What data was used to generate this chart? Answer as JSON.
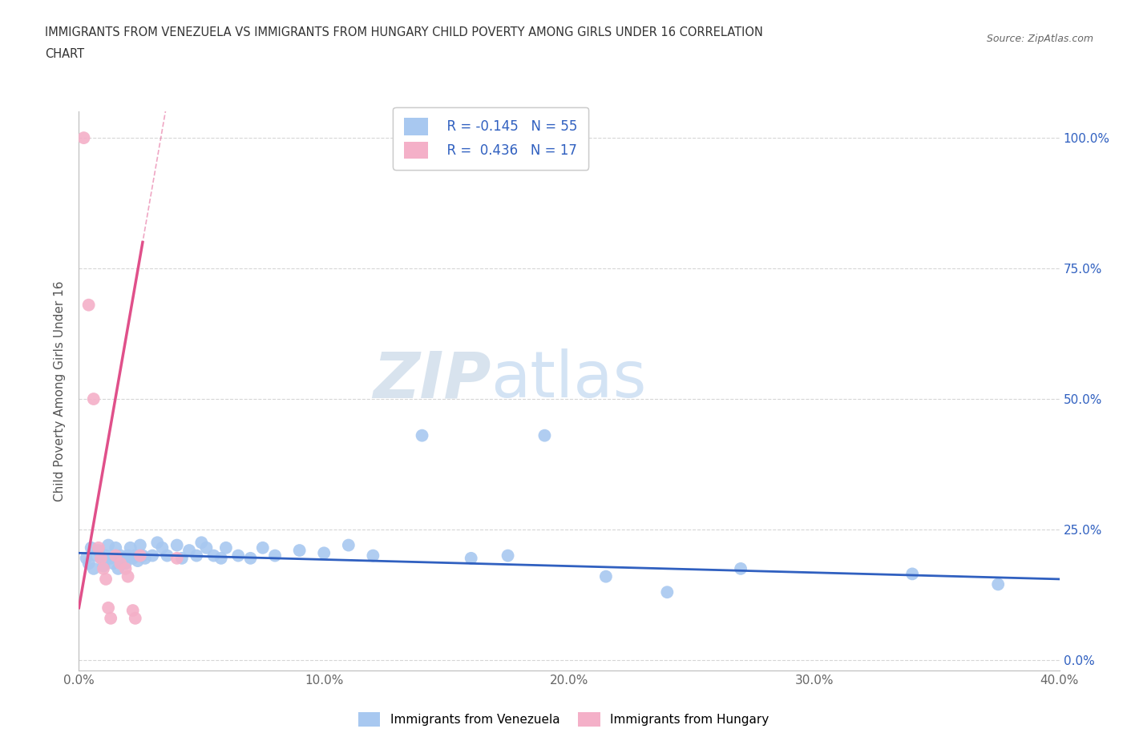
{
  "title_line1": "IMMIGRANTS FROM VENEZUELA VS IMMIGRANTS FROM HUNGARY CHILD POVERTY AMONG GIRLS UNDER 16 CORRELATION",
  "title_line2": "CHART",
  "source": "Source: ZipAtlas.com",
  "ylabel": "Child Poverty Among Girls Under 16",
  "xlim": [
    0.0,
    0.4
  ],
  "ylim": [
    -0.02,
    1.05
  ],
  "xticks": [
    0.0,
    0.1,
    0.2,
    0.3,
    0.4
  ],
  "yticks": [
    0.0,
    0.25,
    0.5,
    0.75,
    1.0
  ],
  "xticklabels": [
    "0.0%",
    "10.0%",
    "20.0%",
    "30.0%",
    "40.0%"
  ],
  "yticklabels_right": [
    "0.0%",
    "25.0%",
    "50.0%",
    "75.0%",
    "100.0%"
  ],
  "venezuela_color": "#a8c8f0",
  "hungary_color": "#f4b0c8",
  "venezuela_line_color": "#3060c0",
  "hungary_line_color": "#e0508a",
  "R_venezuela": -0.145,
  "N_venezuela": 55,
  "R_hungary": 0.436,
  "N_hungary": 17,
  "legend_label_venezuela": "Immigrants from Venezuela",
  "legend_label_hungary": "Immigrants from Hungary",
  "background_color": "#ffffff",
  "venezuela_scatter": [
    [
      0.003,
      0.195
    ],
    [
      0.004,
      0.185
    ],
    [
      0.005,
      0.215
    ],
    [
      0.006,
      0.175
    ],
    [
      0.007,
      0.2
    ],
    [
      0.008,
      0.21
    ],
    [
      0.009,
      0.195
    ],
    [
      0.01,
      0.18
    ],
    [
      0.011,
      0.2
    ],
    [
      0.012,
      0.22
    ],
    [
      0.013,
      0.195
    ],
    [
      0.014,
      0.185
    ],
    [
      0.015,
      0.215
    ],
    [
      0.016,
      0.175
    ],
    [
      0.017,
      0.2
    ],
    [
      0.018,
      0.195
    ],
    [
      0.019,
      0.185
    ],
    [
      0.02,
      0.2
    ],
    [
      0.021,
      0.215
    ],
    [
      0.022,
      0.195
    ],
    [
      0.023,
      0.2
    ],
    [
      0.024,
      0.19
    ],
    [
      0.025,
      0.22
    ],
    [
      0.026,
      0.2
    ],
    [
      0.027,
      0.195
    ],
    [
      0.03,
      0.2
    ],
    [
      0.032,
      0.225
    ],
    [
      0.034,
      0.215
    ],
    [
      0.036,
      0.2
    ],
    [
      0.04,
      0.22
    ],
    [
      0.042,
      0.195
    ],
    [
      0.045,
      0.21
    ],
    [
      0.048,
      0.2
    ],
    [
      0.05,
      0.225
    ],
    [
      0.052,
      0.215
    ],
    [
      0.055,
      0.2
    ],
    [
      0.058,
      0.195
    ],
    [
      0.06,
      0.215
    ],
    [
      0.065,
      0.2
    ],
    [
      0.07,
      0.195
    ],
    [
      0.075,
      0.215
    ],
    [
      0.08,
      0.2
    ],
    [
      0.09,
      0.21
    ],
    [
      0.1,
      0.205
    ],
    [
      0.11,
      0.22
    ],
    [
      0.12,
      0.2
    ],
    [
      0.14,
      0.43
    ],
    [
      0.16,
      0.195
    ],
    [
      0.175,
      0.2
    ],
    [
      0.19,
      0.43
    ],
    [
      0.215,
      0.16
    ],
    [
      0.24,
      0.13
    ],
    [
      0.27,
      0.175
    ],
    [
      0.34,
      0.165
    ],
    [
      0.375,
      0.145
    ]
  ],
  "hungary_scatter": [
    [
      0.002,
      1.0
    ],
    [
      0.004,
      0.68
    ],
    [
      0.006,
      0.5
    ],
    [
      0.008,
      0.215
    ],
    [
      0.009,
      0.195
    ],
    [
      0.01,
      0.175
    ],
    [
      0.011,
      0.155
    ],
    [
      0.012,
      0.1
    ],
    [
      0.013,
      0.08
    ],
    [
      0.015,
      0.2
    ],
    [
      0.017,
      0.185
    ],
    [
      0.019,
      0.175
    ],
    [
      0.02,
      0.16
    ],
    [
      0.022,
      0.095
    ],
    [
      0.023,
      0.08
    ],
    [
      0.025,
      0.2
    ],
    [
      0.04,
      0.195
    ]
  ],
  "ven_trend": [
    0.0,
    0.4,
    0.205,
    0.155
  ],
  "hun_trend_solid": [
    0.0,
    0.025,
    -0.1,
    0.7
  ],
  "hun_trend_dashed_end": 0.2
}
